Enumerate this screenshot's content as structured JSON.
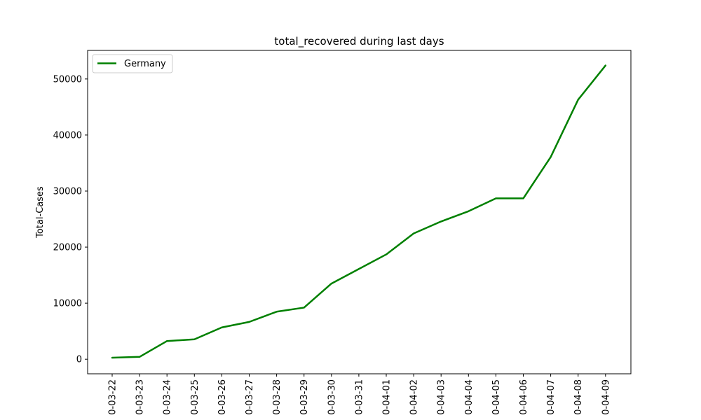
{
  "chart_data": {
    "type": "line",
    "title": "total_recovered during last days",
    "xlabel": "",
    "ylabel": "Total-Cases",
    "categories": [
      "0-03-22",
      "0-03-23",
      "0-03-24",
      "0-03-25",
      "0-03-26",
      "0-03-27",
      "0-03-28",
      "0-03-29",
      "0-03-30",
      "0-03-31",
      "0-04-01",
      "0-04-02",
      "0-04-03",
      "0-04-04",
      "0-04-05",
      "0-04-06",
      "0-04-07",
      "0-04-08",
      "0-04-09"
    ],
    "series": [
      {
        "name": "Germany",
        "color": "#008000",
        "values": [
          266,
          422,
          3243,
          3547,
          5673,
          6658,
          8481,
          9211,
          13500,
          16100,
          18700,
          22440,
          24575,
          26400,
          28700,
          28700,
          36081,
          46300,
          52407
        ]
      }
    ],
    "ylim": [
      -2600,
      55100
    ],
    "yticks": [
      0,
      10000,
      20000,
      30000,
      40000,
      50000
    ],
    "legend": "top-left",
    "grid": false
  }
}
